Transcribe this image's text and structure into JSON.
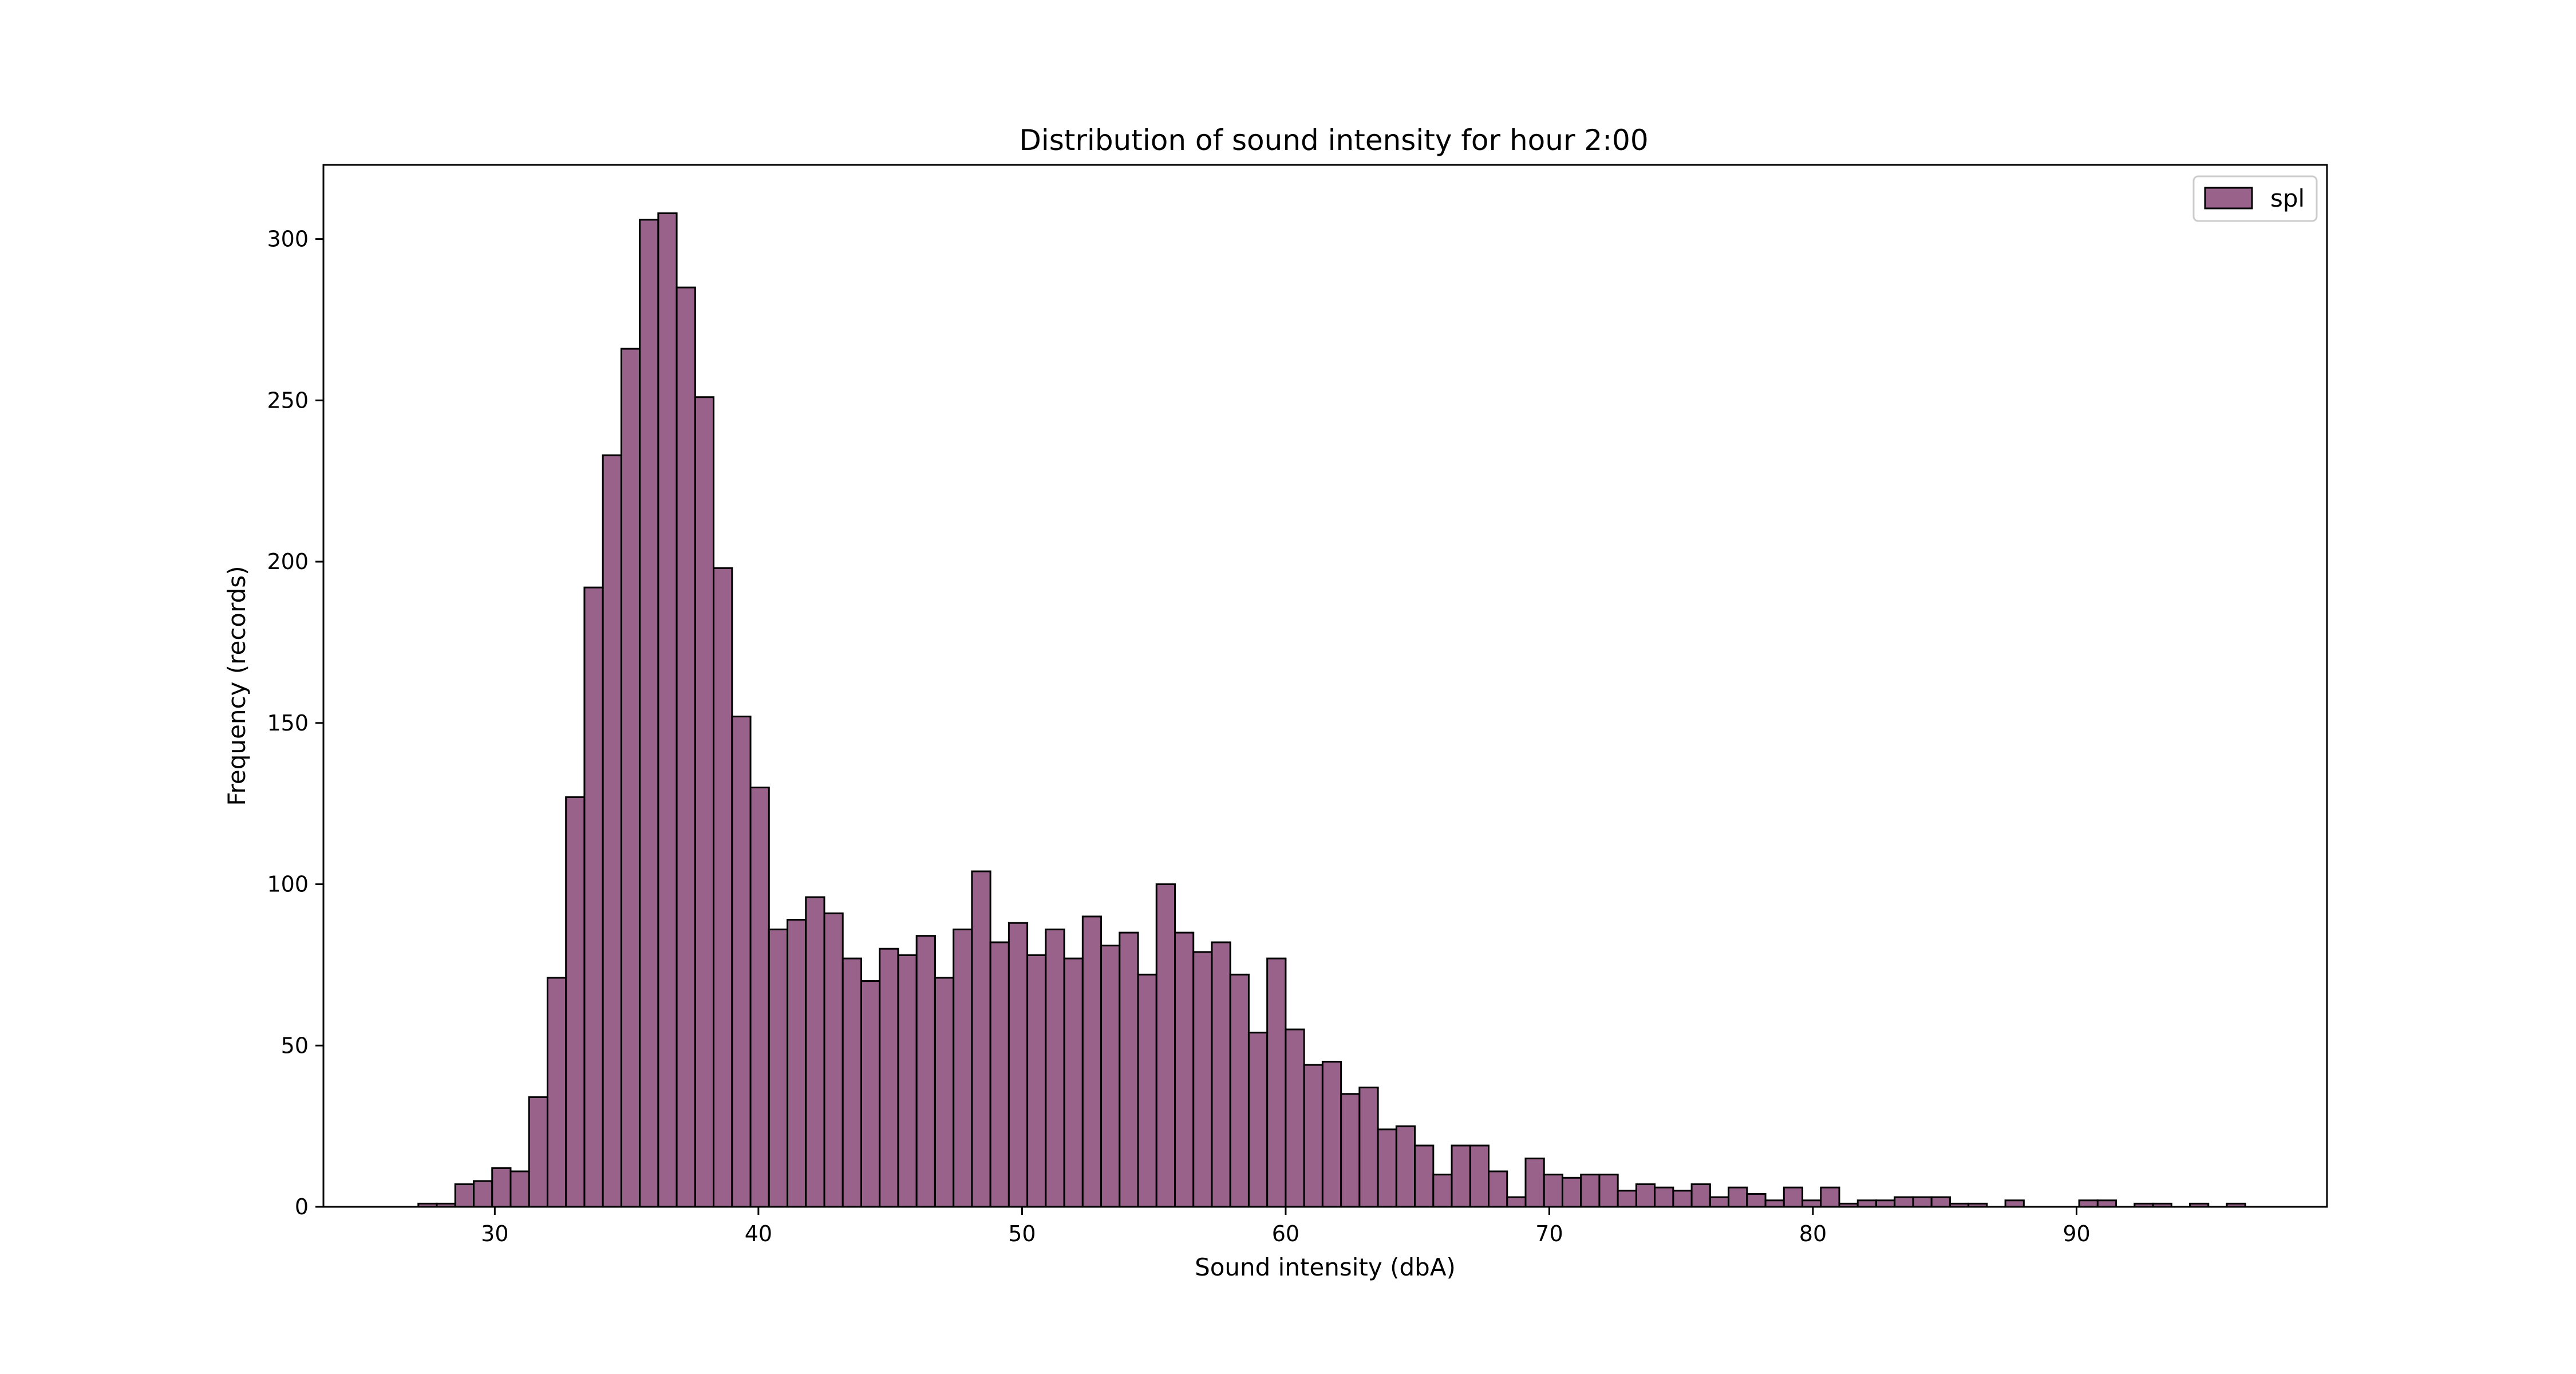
{
  "chart_data": {
    "type": "bar",
    "title": "Distribution of sound intensity for hour 2:00",
    "xlabel": "Sound intensity (dbA)",
    "ylabel": "Frequency (records)",
    "xlim": [
      23.5,
      99.5
    ],
    "ylim": [
      0,
      323
    ],
    "xticks": [
      30,
      40,
      50,
      60,
      70,
      80,
      90
    ],
    "yticks": [
      0,
      50,
      100,
      150,
      200,
      250,
      300
    ],
    "grid": false,
    "legend_position": "top-right",
    "bar_color": "#98628a",
    "edge_color": "#000000",
    "bin_start": 27.1,
    "bin_width": 0.7,
    "series": [
      {
        "name": "spl",
        "values": [
          1,
          1,
          7,
          8,
          12,
          11,
          34,
          71,
          127,
          192,
          233,
          266,
          306,
          308,
          285,
          251,
          198,
          152,
          130,
          86,
          89,
          96,
          91,
          77,
          70,
          80,
          78,
          84,
          71,
          86,
          104,
          82,
          88,
          78,
          86,
          77,
          90,
          81,
          85,
          72,
          100,
          85,
          79,
          82,
          72,
          54,
          77,
          55,
          44,
          45,
          35,
          37,
          24,
          25,
          19,
          10,
          19,
          19,
          11,
          3,
          15,
          10,
          9,
          10,
          10,
          5,
          7,
          6,
          5,
          7,
          3,
          6,
          4,
          2,
          6,
          2,
          6,
          1,
          2,
          2,
          3,
          3,
          3,
          1,
          1,
          0,
          2,
          0,
          0,
          0,
          2,
          2,
          0,
          1,
          1,
          0,
          1,
          0,
          1
        ]
      }
    ]
  }
}
